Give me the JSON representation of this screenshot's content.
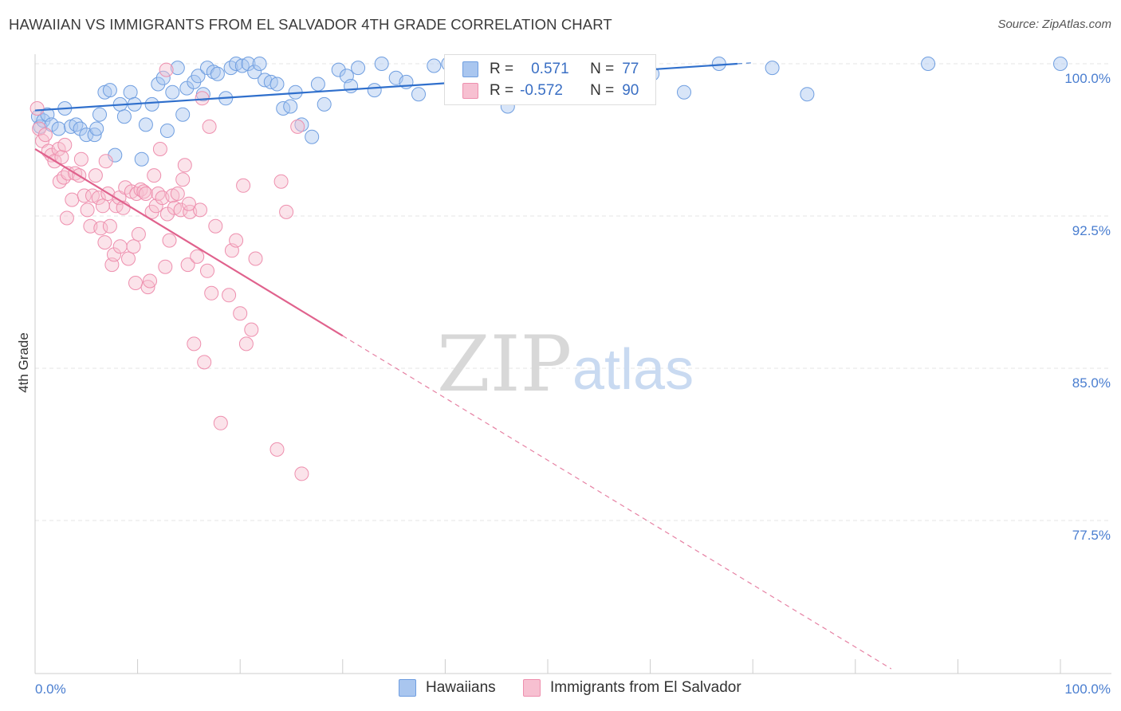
{
  "header": {
    "title": "HAWAIIAN VS IMMIGRANTS FROM EL SALVADOR 4TH GRADE CORRELATION CHART",
    "source": "Source: ZipAtlas.com"
  },
  "watermark": {
    "zip": "ZIP",
    "atlas": "atlas"
  },
  "legend": {
    "rows": [
      {
        "r_key": "R =",
        "r_value": "0.571",
        "n_key": "N =",
        "n_value": "77",
        "color": "#a9c6ef",
        "border": "#6f9ee0"
      },
      {
        "r_key": "R =",
        "r_value": "-0.572",
        "n_key": "N =",
        "n_value": "90",
        "color": "#f7c0d1",
        "border": "#ee8fae"
      }
    ]
  },
  "bottom_legend": {
    "items": [
      {
        "label": "Hawaiians",
        "color": "#a9c6ef",
        "border": "#6f9ee0"
      },
      {
        "label": "Immigrants from El Salvador",
        "color": "#f7c0d1",
        "border": "#ee8fae"
      }
    ]
  },
  "chart_data": {
    "type": "scatter",
    "xlabel": "",
    "ylabel": "4th Grade",
    "xlim": [
      0,
      100
    ],
    "ylim": [
      70.0,
      100.3
    ],
    "x_tick_labels": [
      {
        "value": 0,
        "label": "0.0%"
      },
      {
        "value": 100,
        "label": "100.0%"
      }
    ],
    "y_ticks": [
      {
        "value": 100.0,
        "label": "100.0%"
      },
      {
        "value": 92.5,
        "label": "92.5%"
      },
      {
        "value": 85.0,
        "label": "85.0%"
      },
      {
        "value": 77.5,
        "label": "77.5%"
      }
    ],
    "grid": true,
    "legend_position": "top-center",
    "series": [
      {
        "name": "Hawaiians",
        "color": "#6f9ee0",
        "fill": "#a9c6ef",
        "line_color": "#2f6fcc",
        "trend": {
          "x0": 0,
          "y0": 97.7,
          "x1": 68.5,
          "y1": 100.0,
          "dash_to": 70
        },
        "points": [
          [
            0.3,
            97.4
          ],
          [
            0.5,
            96.9
          ],
          [
            0.8,
            97.2
          ],
          [
            1.2,
            97.5
          ],
          [
            1.6,
            97.0
          ],
          [
            2.3,
            96.8
          ],
          [
            2.9,
            97.8
          ],
          [
            3.5,
            96.9
          ],
          [
            4.0,
            97.0
          ],
          [
            4.4,
            96.8
          ],
          [
            5.0,
            96.5
          ],
          [
            5.8,
            96.5
          ],
          [
            6.0,
            96.8
          ],
          [
            6.3,
            97.5
          ],
          [
            6.8,
            98.6
          ],
          [
            7.3,
            98.7
          ],
          [
            7.8,
            95.5
          ],
          [
            8.3,
            98.0
          ],
          [
            8.7,
            97.4
          ],
          [
            9.3,
            98.6
          ],
          [
            9.7,
            98.0
          ],
          [
            10.4,
            95.3
          ],
          [
            10.8,
            97.0
          ],
          [
            11.4,
            98.0
          ],
          [
            12.0,
            99.0
          ],
          [
            12.5,
            99.3
          ],
          [
            12.9,
            96.7
          ],
          [
            13.4,
            98.6
          ],
          [
            13.9,
            99.8
          ],
          [
            14.4,
            97.5
          ],
          [
            14.8,
            98.8
          ],
          [
            15.5,
            99.1
          ],
          [
            15.9,
            99.4
          ],
          [
            16.4,
            98.5
          ],
          [
            16.8,
            99.8
          ],
          [
            17.4,
            99.6
          ],
          [
            17.8,
            99.5
          ],
          [
            18.6,
            98.3
          ],
          [
            19.1,
            99.8
          ],
          [
            19.6,
            100.0
          ],
          [
            20.2,
            99.9
          ],
          [
            20.8,
            100.0
          ],
          [
            21.4,
            99.6
          ],
          [
            21.9,
            100.0
          ],
          [
            22.4,
            99.2
          ],
          [
            23.0,
            99.1
          ],
          [
            23.6,
            99.0
          ],
          [
            24.2,
            97.8
          ],
          [
            24.9,
            97.9
          ],
          [
            25.4,
            98.6
          ],
          [
            26.0,
            97.0
          ],
          [
            27.0,
            96.4
          ],
          [
            27.6,
            99.0
          ],
          [
            28.2,
            98.0
          ],
          [
            29.6,
            99.7
          ],
          [
            30.4,
            99.4
          ],
          [
            30.8,
            98.9
          ],
          [
            31.5,
            99.8
          ],
          [
            33.1,
            98.7
          ],
          [
            33.8,
            100.0
          ],
          [
            35.2,
            99.3
          ],
          [
            36.2,
            99.1
          ],
          [
            37.4,
            98.5
          ],
          [
            38.9,
            99.9
          ],
          [
            40.3,
            100.0
          ],
          [
            43.2,
            99.9
          ],
          [
            46.1,
            97.9
          ],
          [
            49.5,
            99.9
          ],
          [
            54.3,
            99.8
          ],
          [
            57.3,
            100.0
          ],
          [
            60.2,
            99.5
          ],
          [
            63.3,
            98.6
          ],
          [
            66.7,
            100.0
          ],
          [
            71.9,
            99.8
          ],
          [
            75.3,
            98.5
          ],
          [
            87.1,
            100.0
          ],
          [
            100.0,
            100.0
          ]
        ]
      },
      {
        "name": "Immigrants from El Salvador",
        "color": "#ee8fae",
        "fill": "#f7c0d1",
        "line_color": "#e0628d",
        "trend": {
          "x0": 0,
          "y0": 95.8,
          "x1": 30.0,
          "y1": 86.6,
          "dash_to": 83.5
        },
        "points": [
          [
            0.2,
            97.8
          ],
          [
            0.4,
            96.8
          ],
          [
            0.7,
            96.2
          ],
          [
            1.0,
            96.5
          ],
          [
            1.3,
            95.7
          ],
          [
            1.6,
            95.5
          ],
          [
            1.9,
            95.2
          ],
          [
            2.3,
            95.8
          ],
          [
            2.6,
            95.4
          ],
          [
            2.9,
            96.0
          ],
          [
            2.4,
            94.2
          ],
          [
            2.8,
            94.4
          ],
          [
            3.2,
            94.6
          ],
          [
            3.6,
            93.3
          ],
          [
            3.9,
            94.6
          ],
          [
            4.3,
            94.5
          ],
          [
            4.5,
            95.3
          ],
          [
            4.8,
            93.5
          ],
          [
            5.1,
            92.8
          ],
          [
            5.4,
            92.0
          ],
          [
            5.6,
            93.5
          ],
          [
            5.9,
            94.5
          ],
          [
            6.2,
            93.4
          ],
          [
            6.4,
            91.9
          ],
          [
            6.6,
            93.0
          ],
          [
            6.9,
            95.2
          ],
          [
            7.1,
            93.6
          ],
          [
            7.3,
            92.0
          ],
          [
            7.5,
            90.1
          ],
          [
            7.7,
            90.6
          ],
          [
            7.9,
            93.0
          ],
          [
            8.2,
            93.4
          ],
          [
            8.3,
            91.0
          ],
          [
            8.6,
            92.9
          ],
          [
            8.8,
            93.9
          ],
          [
            9.1,
            90.4
          ],
          [
            9.4,
            93.7
          ],
          [
            9.6,
            91.0
          ],
          [
            9.9,
            93.6
          ],
          [
            10.1,
            91.6
          ],
          [
            10.3,
            93.8
          ],
          [
            10.6,
            93.7
          ],
          [
            10.8,
            93.6
          ],
          [
            11.0,
            89.0
          ],
          [
            11.2,
            89.3
          ],
          [
            11.4,
            92.7
          ],
          [
            11.6,
            94.5
          ],
          [
            11.8,
            93.0
          ],
          [
            12.0,
            93.6
          ],
          [
            12.2,
            95.8
          ],
          [
            12.4,
            93.4
          ],
          [
            12.7,
            90.0
          ],
          [
            12.9,
            92.6
          ],
          [
            13.1,
            91.3
          ],
          [
            13.4,
            93.5
          ],
          [
            13.6,
            92.9
          ],
          [
            13.9,
            93.6
          ],
          [
            14.2,
            92.8
          ],
          [
            14.4,
            94.3
          ],
          [
            14.6,
            95.0
          ],
          [
            14.9,
            90.1
          ],
          [
            15.1,
            92.7
          ],
          [
            15.5,
            86.2
          ],
          [
            15.8,
            90.5
          ],
          [
            16.1,
            92.8
          ],
          [
            16.3,
            98.3
          ],
          [
            16.5,
            85.3
          ],
          [
            16.8,
            89.8
          ],
          [
            17.0,
            96.9
          ],
          [
            17.2,
            88.7
          ],
          [
            17.6,
            92.0
          ],
          [
            18.1,
            82.3
          ],
          [
            19.2,
            90.8
          ],
          [
            19.6,
            91.3
          ],
          [
            20.0,
            87.7
          ],
          [
            20.3,
            94.0
          ],
          [
            20.6,
            86.2
          ],
          [
            21.1,
            86.9
          ],
          [
            21.5,
            90.4
          ],
          [
            23.6,
            81.0
          ],
          [
            24.0,
            94.2
          ],
          [
            24.5,
            92.7
          ],
          [
            25.6,
            96.9
          ],
          [
            26.0,
            79.8
          ],
          [
            12.8,
            99.7
          ],
          [
            3.1,
            92.4
          ],
          [
            6.8,
            91.2
          ],
          [
            9.8,
            89.2
          ],
          [
            15.0,
            93.1
          ],
          [
            18.9,
            88.6
          ]
        ]
      }
    ]
  }
}
